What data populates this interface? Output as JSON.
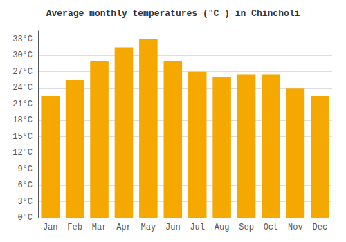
{
  "chart_data": {
    "type": "bar",
    "title": "Average monthly temperatures (°C ) in Chincholi",
    "categories": [
      "Jan",
      "Feb",
      "Mar",
      "Apr",
      "May",
      "Jun",
      "Jul",
      "Aug",
      "Sep",
      "Oct",
      "Nov",
      "Dec"
    ],
    "values": [
      22.5,
      25.5,
      29.0,
      31.5,
      33.0,
      29.0,
      27.0,
      26.0,
      26.5,
      26.5,
      24.0,
      22.5
    ],
    "color": "#F5A800",
    "ylim": [
      0,
      34.5
    ],
    "yticks": [
      {
        "value": 0,
        "label": "0°C"
      },
      {
        "value": 3,
        "label": "3°C"
      },
      {
        "value": 6,
        "label": "6°C"
      },
      {
        "value": 9,
        "label": "9°C"
      },
      {
        "value": 12,
        "label": "12°C"
      },
      {
        "value": 15,
        "label": "15°C"
      },
      {
        "value": 18,
        "label": "18°C"
      },
      {
        "value": 21,
        "label": "21°C"
      },
      {
        "value": 24,
        "label": "24°C"
      },
      {
        "value": 27,
        "label": "27°C"
      },
      {
        "value": 30,
        "label": "30°C"
      },
      {
        "value": 33,
        "label": "33°C"
      }
    ],
    "grid": true
  }
}
